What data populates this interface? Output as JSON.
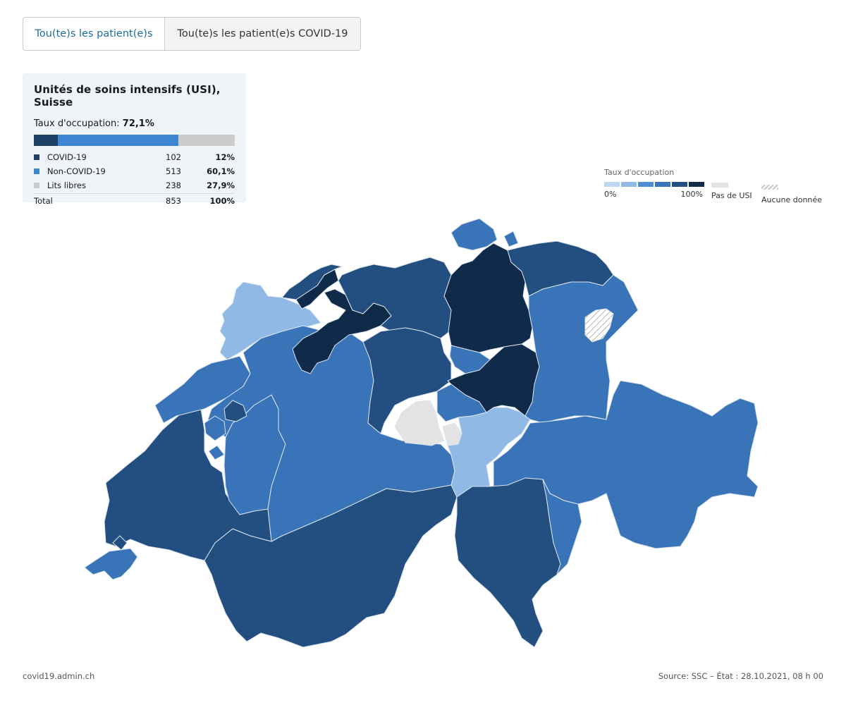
{
  "tabs": [
    {
      "label": "Tou(te)s les patient(e)s",
      "active": true
    },
    {
      "label": "Tou(te)s les patient(e)s COVID-19",
      "active": false
    }
  ],
  "card": {
    "title": "Unités de soins intensifs (USI), Suisse",
    "rate_label": "Taux d'occupation:",
    "rate_value": "72,1%",
    "rows": [
      {
        "label": "COVID-19",
        "count": "102",
        "pct": "12%",
        "color": "#1e3f66",
        "fraction": 0.12
      },
      {
        "label": "Non-COVID-19",
        "count": "513",
        "pct": "60,1%",
        "color": "#3d85d1",
        "fraction": 0.601
      },
      {
        "label": "Lits libres",
        "count": "238",
        "pct": "27,9%",
        "color": "#cccccc",
        "fraction": 0.279
      }
    ],
    "total": {
      "label": "Total",
      "count": "853",
      "pct": "100%"
    }
  },
  "legend": {
    "title": "Taux d'occupation",
    "ramp": [
      "#bfd7f0",
      "#90b9e5",
      "#4f8ed3",
      "#3874b7",
      "#234f80",
      "#102b4a"
    ],
    "min_label": "0%",
    "max_label": "100%",
    "no_icu_label": "Pas de USI",
    "no_data_label": "Aucune donnée"
  },
  "map": {
    "colors": {
      "light": "#90b9e5",
      "mid": "#3874b7",
      "dark": "#234f80",
      "darkest": "#102b4a",
      "none": "#e3e3e3",
      "border": "#dce4ee"
    }
  },
  "footer": {
    "left": "covid19.admin.ch",
    "right": "Source: SSC – État : 28.10.2021, 08 h 00"
  }
}
